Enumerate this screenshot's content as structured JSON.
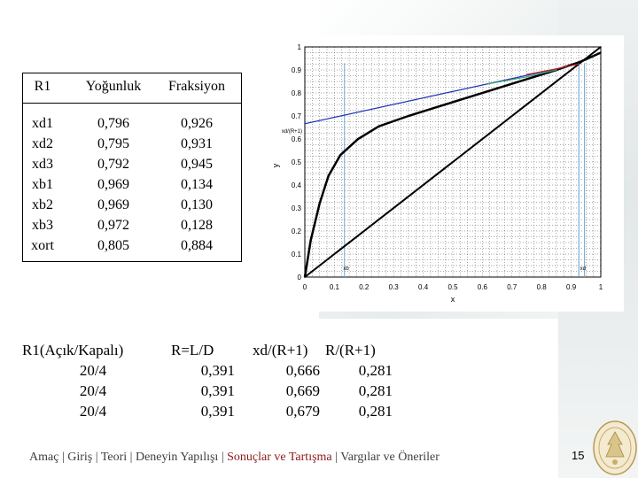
{
  "top_table": {
    "headers": [
      "R1",
      "Yoğunluk",
      "Fraksiyon"
    ],
    "rows": [
      [
        "xd1",
        "0,796",
        "0,926"
      ],
      [
        "xd2",
        "0,795",
        "0,931"
      ],
      [
        "xd3",
        "0,792",
        "0,945"
      ],
      [
        "xb1",
        "0,969",
        "0,134"
      ],
      [
        "xb2",
        "0,969",
        "0,130"
      ],
      [
        "xb3",
        "0,972",
        "0,128"
      ],
      [
        "xort",
        "0,805",
        "0,884"
      ]
    ]
  },
  "bottom_table": {
    "headers": [
      "R1(Açık/Kapalı)",
      "R=L/D",
      "xd/(R+1)",
      "R/(R+1)"
    ],
    "rows": [
      [
        "20/4",
        "0,391",
        "0,666",
        "0,281"
      ],
      [
        "20/4",
        "0,391",
        "0,669",
        "0,281"
      ],
      [
        "20/4",
        "0,391",
        "0,679",
        "0,281"
      ]
    ]
  },
  "footer": {
    "items": [
      "Amaç",
      "Giriş",
      "Teori",
      "Deneyin Yapılışı",
      "Sonuçlar ve Tartışma",
      "Vargılar ve Öneriler"
    ],
    "active": "Sonuçlar ve Tartışma",
    "separator": "|"
  },
  "page_number": "15",
  "chart_data": {
    "type": "line",
    "xlabel": "x",
    "ylabel": "y",
    "xlim": [
      0,
      1
    ],
    "ylim": [
      0,
      1
    ],
    "x_ticks": [
      "0",
      "0.1",
      "0.2",
      "0.3",
      "0.4",
      "0.5",
      "0.6",
      "0.7",
      "0.8",
      "0.9",
      "1"
    ],
    "y_ticks": [
      "0",
      "0.1",
      "0.2",
      "0.3",
      "0.4",
      "0.5",
      "0.6",
      "0.7",
      "0.8",
      "0.9",
      "1"
    ],
    "grid": true,
    "annotations": [
      {
        "text": "xd/(R+1)",
        "x": 0,
        "y": 0.666
      },
      {
        "text": "xb",
        "x": 0.13,
        "y": 0.03
      },
      {
        "text": "xd",
        "x": 0.93,
        "y": 0.03
      }
    ],
    "series": [
      {
        "values_x": [
          0,
          1
        ],
        "values_y": [
          0,
          1
        ],
        "color": "#000000"
      },
      {
        "values_x": [
          0,
          0.02,
          0.05,
          0.08,
          0.12,
          0.18,
          0.25,
          0.35,
          0.45,
          0.55,
          0.65,
          0.75,
          0.85,
          0.93,
          1.0
        ],
        "values_y": [
          0,
          0.16,
          0.32,
          0.44,
          0.53,
          0.6,
          0.655,
          0.7,
          0.74,
          0.78,
          0.82,
          0.86,
          0.9,
          0.935,
          0.975
        ],
        "color": "#000000"
      },
      {
        "values_x": [
          0,
          0.926
        ],
        "values_y": [
          0.666,
          0.926
        ],
        "color": "#1f2fb5"
      },
      {
        "values_x": [
          0.13,
          0.926
        ],
        "values_y": [
          0.13,
          0.926
        ],
        "color": "#000000"
      },
      {
        "values_x": [
          0.75,
          0.85,
          0.926
        ],
        "values_y": [
          0.88,
          0.905,
          0.926
        ],
        "color": "#c02020"
      },
      {
        "values_x": [
          0.62,
          0.75,
          0.85
        ],
        "values_y": [
          0.84,
          0.87,
          0.9
        ],
        "color": "#30a070"
      }
    ],
    "vlines": [
      {
        "x": 0.134,
        "color": "#6aa6d8"
      },
      {
        "x": 0.926,
        "color": "#6aa6d8"
      },
      {
        "x": 0.945,
        "color": "#6aa6d8"
      }
    ]
  }
}
